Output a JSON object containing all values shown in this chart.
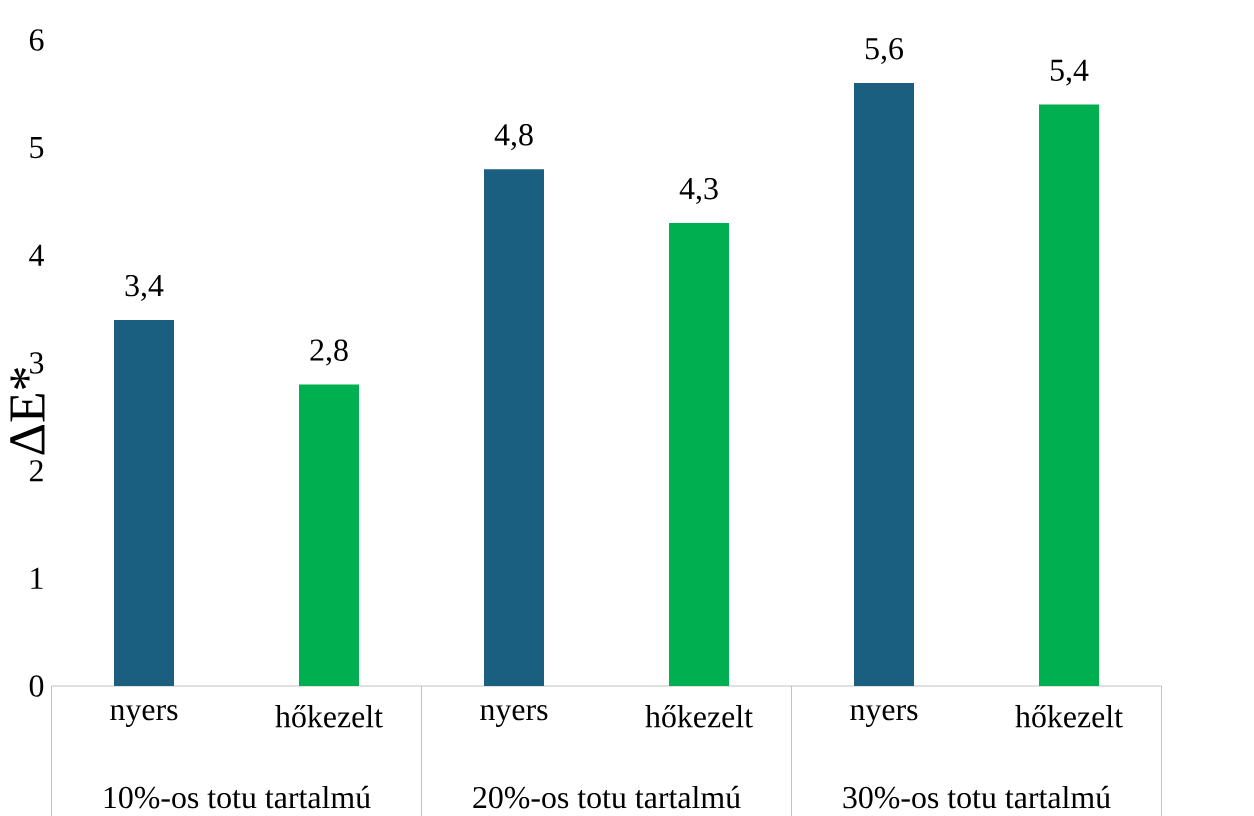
{
  "chart_data": {
    "type": "bar",
    "ylabel": "ΔE*",
    "categories": [
      "nyers",
      "hőkezelt",
      "nyers",
      "hőkezelt",
      "nyers",
      "hőkezelt"
    ],
    "values": [
      3.4,
      2.8,
      4.8,
      4.3,
      5.6,
      5.4
    ],
    "value_labels": [
      "3,4",
      "2,8",
      "4,8",
      "4,3",
      "5,6",
      "5,4"
    ],
    "colors": [
      "#1a5e80",
      "#00b050",
      "#1a5e80",
      "#00b050",
      "#1a5e80",
      "#00b050"
    ],
    "annotations": [
      "10%-os totu tartalmú",
      "20%-os totu tartalmú",
      "30%-os totu tartalmú"
    ],
    "ylim": [
      0,
      6
    ],
    "yticks": [
      0,
      1,
      2,
      3,
      4,
      5,
      6
    ],
    "grid": false
  }
}
